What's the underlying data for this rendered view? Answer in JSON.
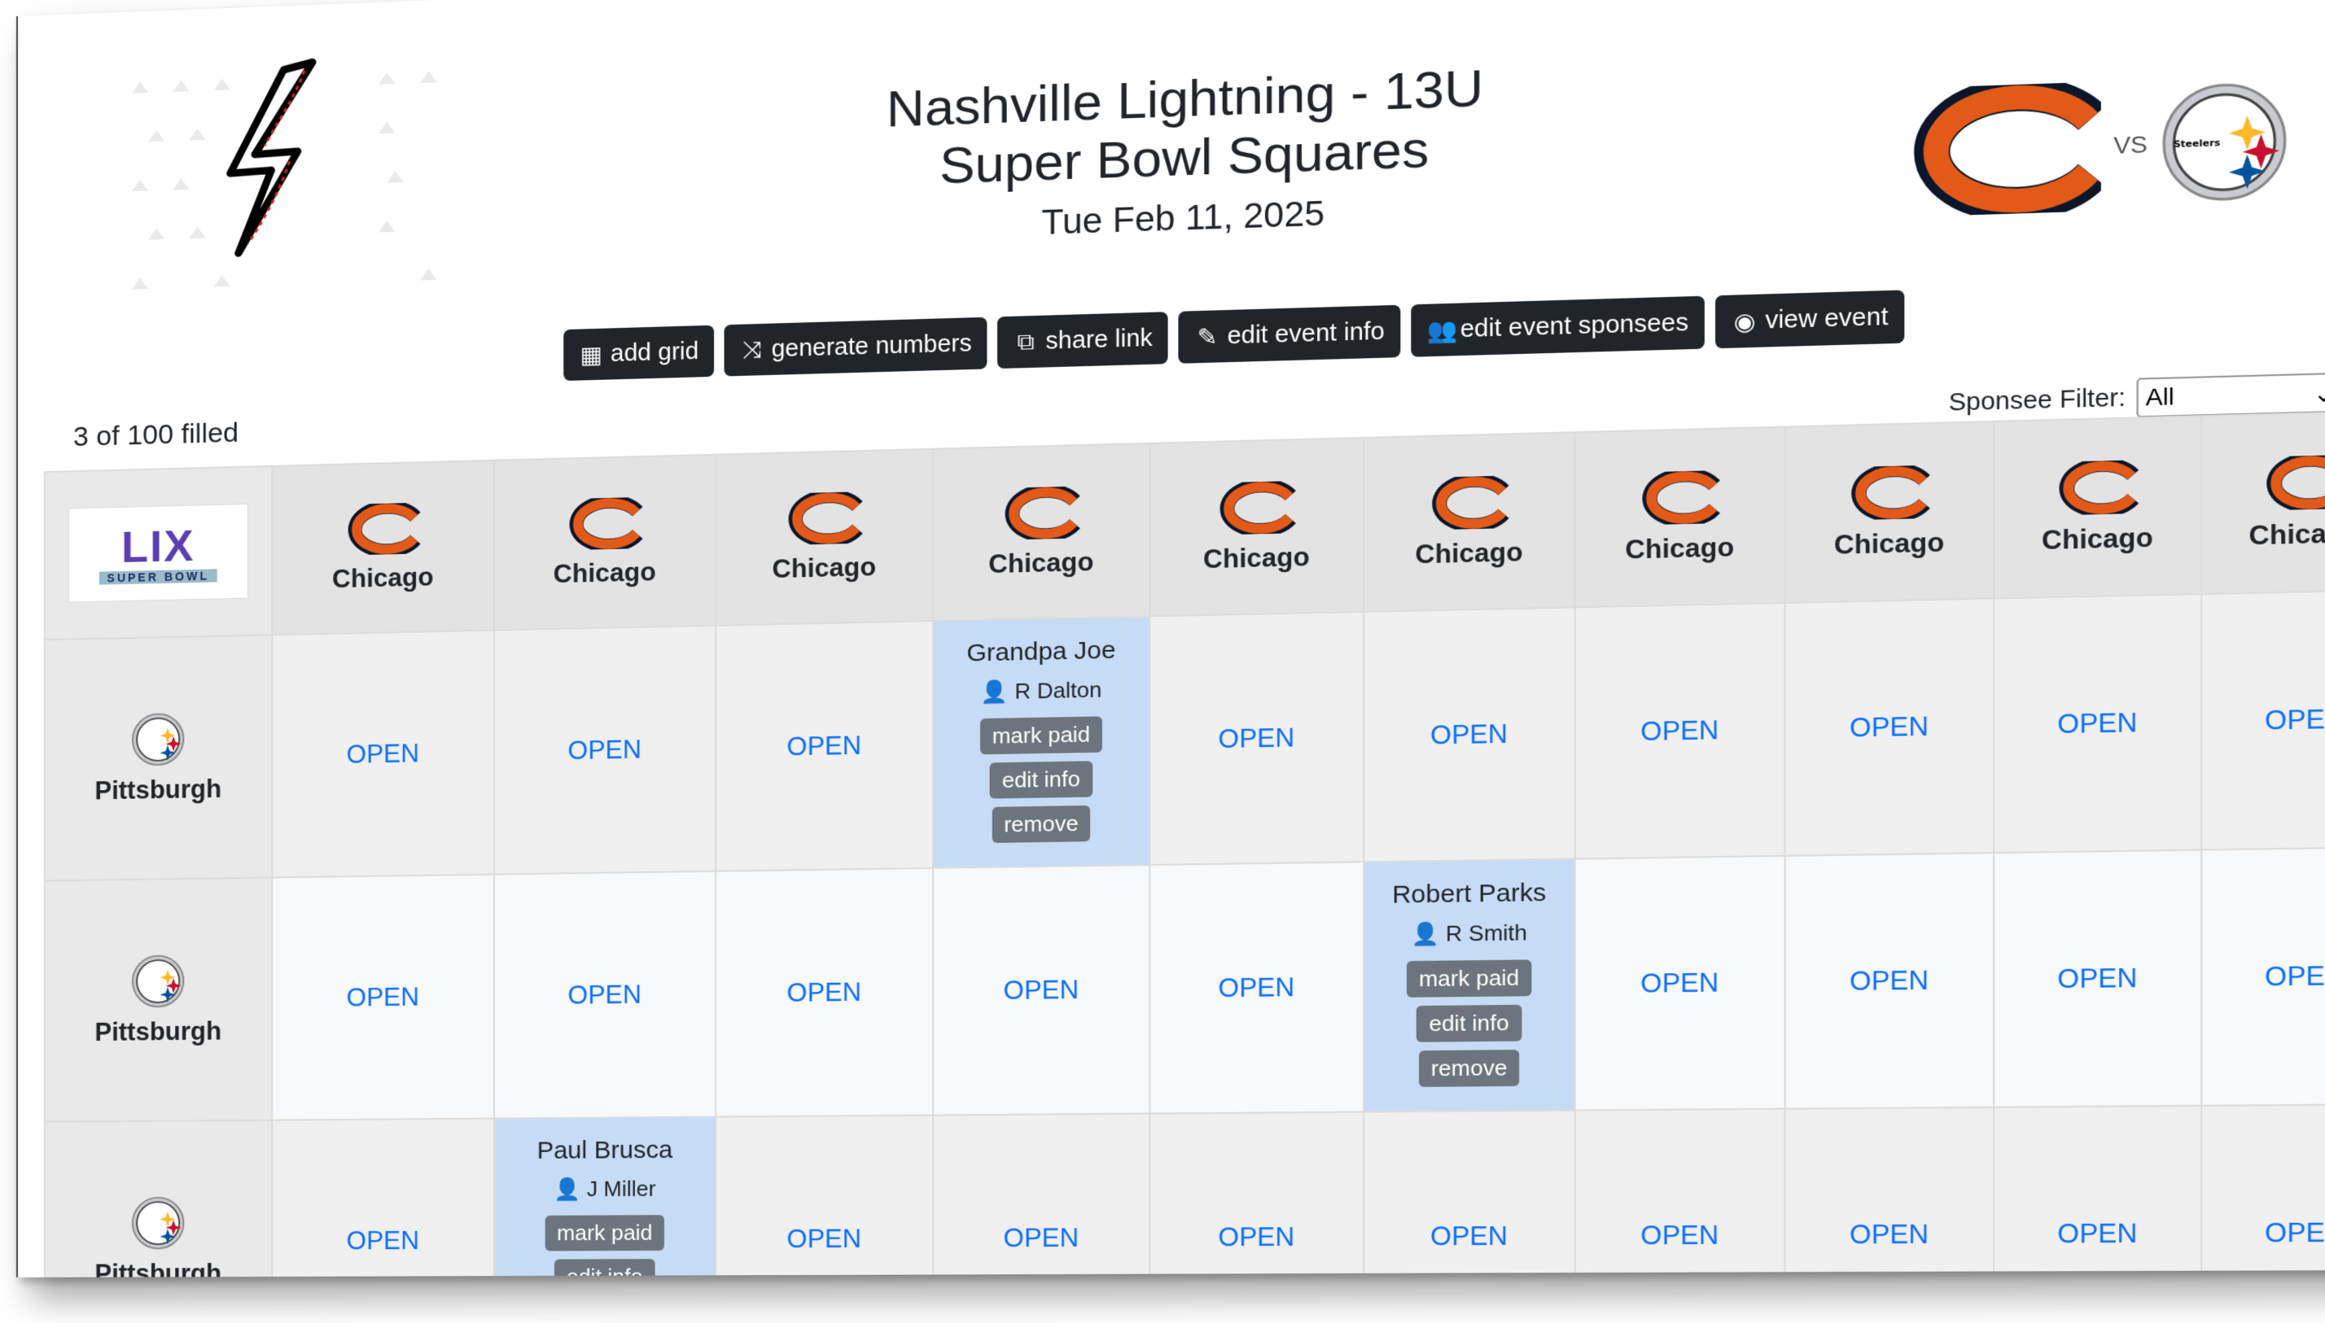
{
  "header": {
    "title_line1": "Nashville Lightning - 13U",
    "title_line2": "Super Bowl Squares",
    "date": "Tue Feb 11, 2025",
    "vs_label": "VS",
    "away_logo_text": "Steelers",
    "sb_logo_text": "LIX",
    "sb_logo_subtext": "SUPER BOWL"
  },
  "toolbar": {
    "add_grid": "add grid",
    "generate_numbers": "generate numbers",
    "share_link": "share link",
    "edit_event_info": "edit event info",
    "edit_event_sponsees": "edit event sponsees",
    "view_event": "view event"
  },
  "status": {
    "filled_text": "3 of 100 filled"
  },
  "filter": {
    "label": "Sponsee Filter:",
    "selected": "All"
  },
  "grid": {
    "column_team": "Chicago",
    "row_team": "Pittsburgh",
    "open_label": "OPEN",
    "mark_paid_label": "mark paid",
    "edit_info_label": "edit info",
    "remove_label": "remove",
    "columns": [
      "Chicago",
      "Chicago",
      "Chicago",
      "Chicago",
      "Chicago",
      "Chicago",
      "Chicago",
      "Chicago",
      "Chicago",
      "Chicago"
    ],
    "rows": [
      {
        "team": "Pittsburgh",
        "cells": [
          {
            "status": "OPEN"
          },
          {
            "status": "OPEN"
          },
          {
            "status": "OPEN"
          },
          {
            "status": "taken",
            "owner": "Grandpa Joe",
            "sponsee": "R Dalton"
          },
          {
            "status": "OPEN"
          },
          {
            "status": "OPEN"
          },
          {
            "status": "OPEN"
          },
          {
            "status": "OPEN"
          },
          {
            "status": "OPEN"
          },
          {
            "status": "OPEN"
          }
        ]
      },
      {
        "team": "Pittsburgh",
        "cells": [
          {
            "status": "OPEN"
          },
          {
            "status": "OPEN"
          },
          {
            "status": "OPEN"
          },
          {
            "status": "OPEN"
          },
          {
            "status": "OPEN"
          },
          {
            "status": "taken",
            "owner": "Robert Parks",
            "sponsee": "R Smith"
          },
          {
            "status": "OPEN"
          },
          {
            "status": "OPEN"
          },
          {
            "status": "OPEN"
          },
          {
            "status": "OPEN"
          }
        ]
      },
      {
        "team": "Pittsburgh",
        "cells": [
          {
            "status": "OPEN"
          },
          {
            "status": "taken",
            "owner": "Paul Brusca",
            "sponsee": "J Miller"
          },
          {
            "status": "OPEN"
          },
          {
            "status": "OPEN"
          },
          {
            "status": "OPEN"
          },
          {
            "status": "OPEN"
          },
          {
            "status": "OPEN"
          },
          {
            "status": "OPEN"
          },
          {
            "status": "OPEN"
          },
          {
            "status": "OPEN"
          }
        ]
      }
    ]
  },
  "colors": {
    "bears_orange": "#e35a18",
    "bears_navy": "#0b162a",
    "link_blue": "#0d6efd",
    "taken_bg": "#c6dcf6",
    "dark_button": "#212529",
    "grey_button": "#6c757d"
  }
}
